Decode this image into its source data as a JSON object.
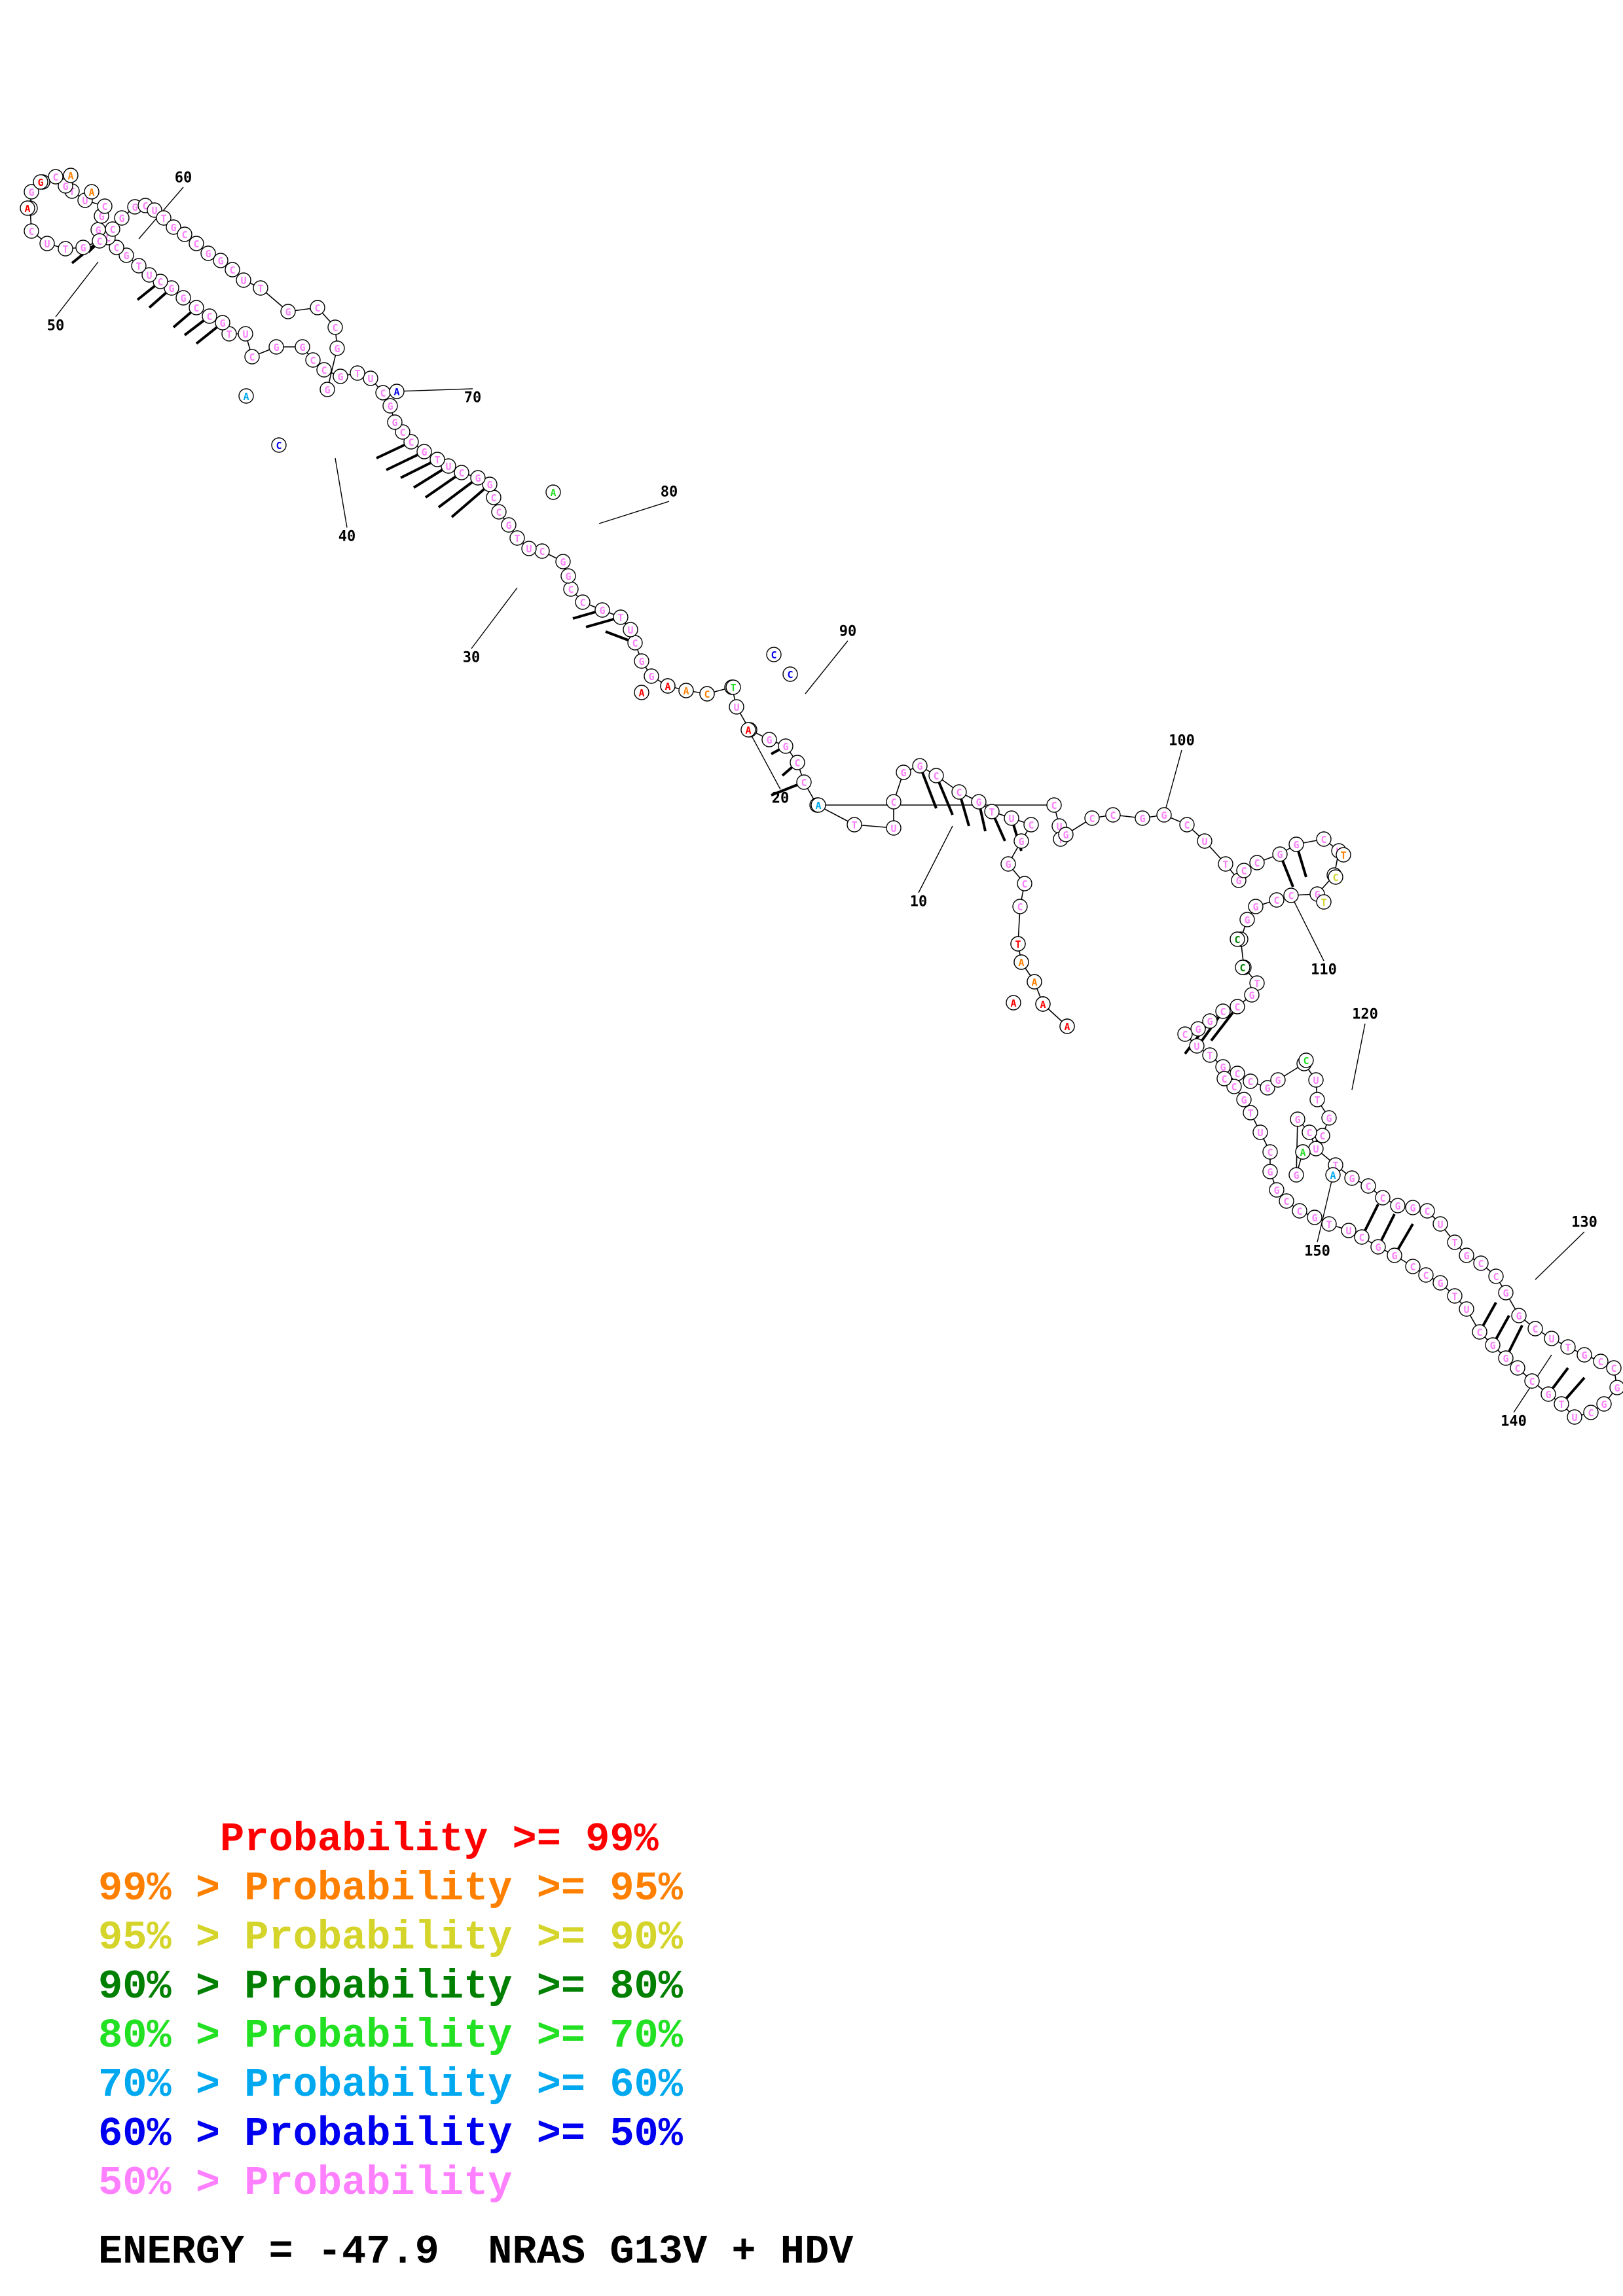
{
  "probability_colors": {
    "p99": "#ff0000",
    "p95": "#ff8000",
    "p90": "#d4d42a",
    "p80": "#008000",
    "p70": "#22e022",
    "p60": "#00a8f0",
    "p50": "#0000f0",
    "plow": "#ff80ff"
  },
  "legend": [
    {
      "text": "     Probability >= 99%",
      "color_key": "p99"
    },
    {
      "text": "99% > Probability >= 95%",
      "color_key": "p95"
    },
    {
      "text": "95% > Probability >= 90%",
      "color_key": "p90"
    },
    {
      "text": "90% > Probability >= 80%",
      "color_key": "p80"
    },
    {
      "text": "80% > Probability >= 70%",
      "color_key": "p70"
    },
    {
      "text": "70% > Probability >= 60%",
      "color_key": "p60"
    },
    {
      "text": "60% > Probability >= 50%",
      "color_key": "p50"
    },
    {
      "text": "50% > Probability",
      "color_key": "plow"
    }
  ],
  "energy_text": "ENERGY = -47.9  NRAS G13V + HDV",
  "position_labels": [
    "10",
    "20",
    "30",
    "40",
    "50",
    "60",
    "70",
    "80",
    "90",
    "100",
    "110",
    "120",
    "130",
    "140",
    "150"
  ],
  "highlighted_nucleotides": [
    {
      "base": "A",
      "color_key": "p99"
    },
    {
      "base": "T",
      "color_key": "p99"
    },
    {
      "base": "A",
      "color_key": "p99"
    },
    {
      "base": "A",
      "color_key": "p99"
    },
    {
      "base": "A",
      "color_key": "p99"
    },
    {
      "base": "A",
      "color_key": "p99"
    },
    {
      "base": "A",
      "color_key": "p99"
    },
    {
      "base": "A",
      "color_key": "p99"
    },
    {
      "base": "G",
      "color_key": "p99"
    },
    {
      "base": "A",
      "color_key": "p95"
    },
    {
      "base": "A",
      "color_key": "p95"
    },
    {
      "base": "C",
      "color_key": "p95"
    },
    {
      "base": "A",
      "color_key": "p95"
    },
    {
      "base": "A",
      "color_key": "p95"
    },
    {
      "base": "A",
      "color_key": "p95"
    },
    {
      "base": "T",
      "color_key": "p95"
    },
    {
      "base": "C",
      "color_key": "p90"
    },
    {
      "base": "T",
      "color_key": "p90"
    },
    {
      "base": "C",
      "color_key": "p80"
    },
    {
      "base": "C",
      "color_key": "p80"
    },
    {
      "base": "A",
      "color_key": "p70"
    },
    {
      "base": "C",
      "color_key": "p70"
    },
    {
      "base": "T",
      "color_key": "p70"
    },
    {
      "base": "A",
      "color_key": "p70"
    },
    {
      "base": "A",
      "color_key": "p60"
    },
    {
      "base": "A",
      "color_key": "p60"
    },
    {
      "base": "A",
      "color_key": "p60"
    },
    {
      "base": "C",
      "color_key": "p50"
    },
    {
      "base": "A",
      "color_key": "p50"
    },
    {
      "base": "C",
      "color_key": "p50"
    },
    {
      "base": "C",
      "color_key": "p50"
    }
  ]
}
